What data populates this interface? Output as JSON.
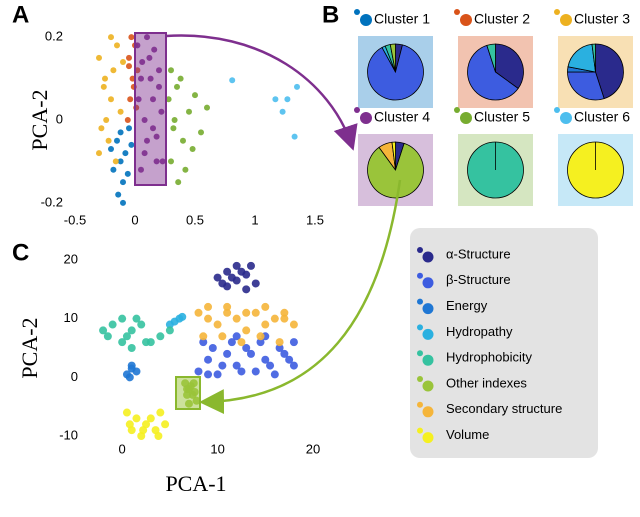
{
  "chart_data": [
    {
      "type": "scatter",
      "panel": "A",
      "ylabel": "PCA-2",
      "xlim": [
        -0.55,
        1.55
      ],
      "ylim": [
        -0.21,
        0.21
      ],
      "xticks": [
        -0.5,
        0,
        0.5,
        1,
        1.5
      ],
      "yticks": [
        0.2,
        0,
        -0.2
      ],
      "series": [
        {
          "color": "#0072bd",
          "x": [
            -0.15,
            -0.12,
            -0.1,
            -0.08,
            -0.05,
            -0.18,
            -0.14,
            -0.03,
            -0.1,
            -0.06,
            -0.2,
            -0.12
          ],
          "y": [
            -0.05,
            -0.1,
            -0.15,
            -0.08,
            -0.02,
            -0.12,
            -0.18,
            -0.06,
            -0.2,
            -0.13,
            -0.07,
            -0.03
          ]
        },
        {
          "color": "#d95319",
          "x": [
            -0.05,
            -0.02,
            0,
            -0.04,
            0.02,
            -0.06,
            -0.01,
            -0.03,
            0.01,
            -0.05
          ],
          "y": [
            0.15,
            0.1,
            0.18,
            0.05,
            0.12,
            0.0,
            0.08,
            0.2,
            0.03,
            0.13
          ]
        },
        {
          "color": "#edb120",
          "x": [
            -0.3,
            -0.25,
            -0.2,
            -0.28,
            -0.15,
            -0.22,
            -0.18,
            -0.26,
            -0.12,
            -0.3,
            -0.2,
            -0.1,
            -0.24,
            -0.16
          ],
          "y": [
            0.15,
            0.1,
            0.05,
            -0.02,
            0.18,
            -0.05,
            0.12,
            0.08,
            0.02,
            -0.08,
            0.2,
            0.14,
            0.0,
            -0.1
          ]
        },
        {
          "color": "#7e2f8e",
          "x": [
            0.02,
            0.05,
            0.08,
            0.1,
            0.12,
            0.15,
            0.18,
            0.2,
            0.22,
            0.05,
            0.1,
            0.15,
            0.2,
            0.03,
            0.08,
            0.13,
            0.18,
            0.23,
            0.06,
            0.16
          ],
          "y": [
            0.18,
            0.1,
            0.0,
            -0.05,
            0.15,
            0.05,
            -0.1,
            0.12,
            0.02,
            -0.12,
            0.2,
            -0.02,
            0.08,
            0.05,
            -0.08,
            0.1,
            -0.04,
            -0.1,
            0.14,
            0.17
          ]
        },
        {
          "color": "#77ac30",
          "x": [
            0.28,
            0.32,
            0.35,
            0.4,
            0.45,
            0.3,
            0.38,
            0.5,
            0.55,
            0.42,
            0.33,
            0.6,
            0.48,
            0.36,
            0.3
          ],
          "y": [
            0.05,
            -0.02,
            0.08,
            -0.05,
            0.02,
            -0.1,
            0.1,
            0.06,
            -0.03,
            -0.12,
            0.0,
            0.03,
            -0.07,
            -0.15,
            0.12
          ]
        },
        {
          "color": "#4dbeee",
          "x": [
            0.81,
            1.17,
            1.27,
            1.35,
            1.23,
            1.33
          ],
          "y": [
            0.096,
            0.05,
            0.05,
            0.08,
            0.02,
            -0.04
          ]
        }
      ]
    },
    {
      "type": "pie",
      "panel": "B",
      "colors": [
        "#2a2a8c",
        "#3d5ce0",
        "#1f77d4",
        "#2ab0e0",
        "#35c2a0",
        "#9ac43a",
        "#f5b53a",
        "#f5f020"
      ],
      "series": [
        {
          "name": "Cluster 1",
          "color": "#0072bd",
          "box": "#a9cfea",
          "values": [
            4,
            88,
            0,
            2,
            3,
            3,
            0,
            0
          ]
        },
        {
          "name": "Cluster 2",
          "color": "#d95319",
          "box": "#f2c3b0",
          "values": [
            35,
            60,
            0,
            0,
            5,
            0,
            0,
            0
          ]
        },
        {
          "name": "Cluster 3",
          "color": "#edb120",
          "box": "#f8e0b4",
          "values": [
            45,
            30,
            3,
            20,
            2,
            0,
            0,
            0
          ]
        },
        {
          "name": "Cluster 4",
          "color": "#7e2f8e",
          "box": "#d7bfdc",
          "values": [
            5,
            0,
            0,
            0,
            0,
            85,
            8,
            2
          ]
        },
        {
          "name": "Cluster 5",
          "color": "#77ac30",
          "box": "#d5e6c1",
          "values": [
            0,
            0,
            0,
            0,
            100,
            0,
            0,
            0
          ]
        },
        {
          "name": "Cluster 6",
          "color": "#4dbeee",
          "box": "#c6e8f7",
          "values": [
            0,
            0,
            0,
            0,
            0,
            0,
            0,
            100
          ]
        }
      ]
    },
    {
      "type": "scatter",
      "panel": "C",
      "xlabel": "PCA-1",
      "ylabel": "PCA-2",
      "legend": true,
      "xlim": [
        -4,
        20
      ],
      "ylim": [
        -10,
        20
      ],
      "xticks": [
        0,
        10,
        20
      ],
      "yticks": [
        20,
        10,
        0,
        -10
      ],
      "series": [
        {
          "name": "α-Structure",
          "color": "#2a2a8c",
          "x": [
            10,
            11,
            12,
            13,
            14,
            10.5,
            11.5,
            12.5,
            13.5,
            11,
            12,
            13
          ],
          "y": [
            17,
            18,
            19,
            17.5,
            16,
            16,
            17,
            18,
            19,
            15.5,
            16.5,
            15
          ]
        },
        {
          "name": "β-Structure",
          "color": "#3d5ce0",
          "x": [
            8,
            9,
            10,
            11,
            12,
            13,
            14,
            15,
            16,
            17,
            18,
            8.5,
            9.5,
            10.5,
            11.5,
            12.5,
            13.5,
            14.5,
            15.5,
            16.5,
            17.5,
            9,
            12,
            15,
            18
          ],
          "y": [
            1,
            3,
            0.5,
            4,
            2,
            5,
            1,
            3,
            0.5,
            4,
            2,
            6,
            5,
            2,
            6,
            1,
            4,
            6,
            2,
            5,
            3,
            0.5,
            7,
            7,
            6
          ]
        },
        {
          "name": "Energy",
          "color": "#1f77d4",
          "x": [
            0.5,
            1,
            1.5,
            1,
            0.8
          ],
          "y": [
            0.5,
            1.5,
            1,
            2,
            0
          ]
        },
        {
          "name": "Hydropathy",
          "color": "#2ab0e0",
          "x": [
            5,
            5.5,
            6,
            6.3
          ],
          "y": [
            9,
            9.5,
            10,
            10.3
          ]
        },
        {
          "name": "Hydrophobicity",
          "color": "#35c2a0",
          "x": [
            -2,
            -1,
            0,
            1,
            2,
            -1.5,
            0.5,
            1.5,
            2.5,
            3,
            4,
            5,
            0,
            1
          ],
          "y": [
            8,
            9,
            10,
            8,
            9,
            7,
            7,
            10,
            6,
            6,
            7,
            8,
            6,
            5
          ]
        },
        {
          "name": "Other indexes",
          "color": "#9ac43a",
          "x": [
            6.6,
            7,
            7.4,
            7.8,
            6.8,
            7.2,
            7.6,
            7,
            6.8,
            7.5
          ],
          "y": [
            -1,
            -2,
            -3,
            -4,
            -3,
            -1.5,
            -2.5,
            -4.5,
            -2,
            -1
          ]
        },
        {
          "name": "Secondary structure",
          "color": "#f5b53a",
          "x": [
            8,
            9,
            10,
            11,
            12,
            13,
            14,
            15,
            16,
            17,
            18,
            8.5,
            10.5,
            12.5,
            14.5,
            16.5,
            9,
            11,
            13,
            15,
            17
          ],
          "y": [
            11,
            10,
            9,
            11,
            10,
            8,
            11,
            9,
            10,
            11,
            9,
            7,
            7,
            6,
            7,
            6,
            12,
            12,
            11,
            12,
            10
          ]
        },
        {
          "name": "Volume",
          "color": "#f5f020",
          "x": [
            0.5,
            1.5,
            2.5,
            3.5,
            4.5,
            1,
            2,
            3,
            4,
            0.8,
            2.2,
            3.8
          ],
          "y": [
            -6,
            -7,
            -8,
            -9,
            -8,
            -9,
            -10,
            -7,
            -6,
            -8,
            -9,
            -10
          ]
        }
      ]
    }
  ]
}
